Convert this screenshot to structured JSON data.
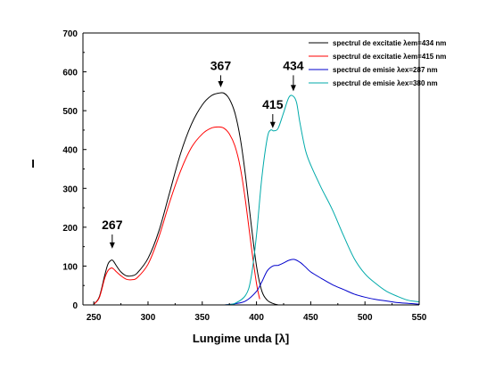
{
  "chart_data": {
    "type": "line",
    "xlabel": "Lungime unda [λ]",
    "ylabel": "I",
    "xlim": [
      240,
      550
    ],
    "ylim": [
      0,
      700
    ],
    "x_ticks": [
      250,
      300,
      350,
      400,
      450,
      500,
      550
    ],
    "y_ticks": [
      0,
      100,
      200,
      300,
      400,
      500,
      600,
      700
    ],
    "grid": false,
    "legend_position": "top-right",
    "series": [
      {
        "name": "spectrul de excitatie λem=434 nm",
        "color": "#000000",
        "x": [
          250,
          255,
          260,
          263,
          266,
          268,
          271,
          275,
          280,
          285,
          290,
          300,
          310,
          320,
          330,
          340,
          350,
          358,
          365,
          370,
          375,
          380,
          385,
          390,
          395,
          400,
          405,
          410,
          415,
          420
        ],
        "y": [
          2,
          20,
          75,
          105,
          115,
          113,
          100,
          85,
          75,
          75,
          82,
          120,
          190,
          290,
          390,
          465,
          515,
          538,
          545,
          545,
          530,
          495,
          430,
          330,
          210,
          100,
          35,
          12,
          4,
          0
        ]
      },
      {
        "name": "spectrul de excitatie λem=415 nm",
        "color": "#ff0000",
        "x": [
          250,
          255,
          260,
          263,
          266,
          268,
          271,
          275,
          280,
          285,
          290,
          300,
          310,
          320,
          330,
          340,
          350,
          358,
          365,
          370,
          375,
          380,
          385,
          390,
          395,
          400,
          403
        ],
        "y": [
          2,
          18,
          68,
          88,
          95,
          93,
          85,
          75,
          66,
          65,
          70,
          105,
          175,
          265,
          345,
          405,
          440,
          455,
          458,
          455,
          440,
          410,
          355,
          265,
          155,
          55,
          15
        ]
      },
      {
        "name": "spectrul de emisie λex=287 nm",
        "color": "#0000cc",
        "x": [
          370,
          380,
          390,
          400,
          405,
          410,
          415,
          420,
          425,
          430,
          435,
          440,
          445,
          450,
          460,
          470,
          480,
          490,
          500,
          510,
          520,
          530,
          540,
          550
        ],
        "y": [
          0,
          3,
          10,
          35,
          60,
          88,
          100,
          102,
          108,
          115,
          117,
          110,
          98,
          85,
          68,
          52,
          40,
          28,
          20,
          14,
          10,
          6,
          4,
          2
        ]
      },
      {
        "name": "spectrul de emisie λex=380 nm",
        "color": "#00aaaa",
        "x": [
          370,
          380,
          390,
          395,
          400,
          405,
          410,
          413,
          416,
          420,
          425,
          430,
          434,
          437,
          440,
          445,
          450,
          460,
          470,
          480,
          490,
          500,
          510,
          520,
          530,
          540,
          550
        ],
        "y": [
          0,
          4,
          25,
          70,
          180,
          330,
          430,
          450,
          448,
          455,
          495,
          535,
          537,
          520,
          470,
          400,
          360,
          300,
          245,
          180,
          120,
          80,
          55,
          35,
          22,
          12,
          8
        ]
      }
    ],
    "annotations": [
      {
        "text": "267",
        "x": 267,
        "y": 145,
        "label_y": 195
      },
      {
        "text": "367",
        "x": 367,
        "y": 560,
        "label_y": 605
      },
      {
        "text": "415",
        "x": 415,
        "y": 455,
        "label_y": 505
      },
      {
        "text": "434",
        "x": 434,
        "y": 550,
        "label_y": 605
      }
    ]
  }
}
